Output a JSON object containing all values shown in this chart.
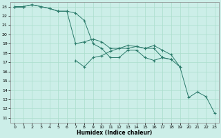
{
  "xlabel": "Humidex (Indice chaleur)",
  "background_color": "#cceee8",
  "grid_color": "#aaddcc",
  "line_color": "#2a7a6a",
  "xlim": [
    -0.5,
    23.5
  ],
  "ylim": [
    10.5,
    23.5
  ],
  "yticks": [
    11,
    12,
    13,
    14,
    15,
    16,
    17,
    18,
    19,
    20,
    21,
    22,
    23
  ],
  "xticks": [
    0,
    1,
    2,
    3,
    4,
    5,
    6,
    7,
    8,
    9,
    10,
    11,
    12,
    13,
    14,
    15,
    16,
    17,
    18,
    19,
    20,
    21,
    22,
    23
  ],
  "line1_x": [
    0,
    1,
    2,
    3,
    4,
    5,
    6,
    7,
    8,
    9,
    10,
    11,
    12,
    13,
    14,
    15,
    16,
    17,
    18,
    19,
    20,
    21,
    22,
    23
  ],
  "line1_y": [
    23,
    23,
    23.2,
    23,
    22.8,
    22.5,
    22.5,
    22.3,
    21.5,
    19,
    18.5,
    17.5,
    17.5,
    18.3,
    18.3,
    17.5,
    17.2,
    17.5,
    17.3,
    16.5,
    null,
    null,
    null,
    null
  ],
  "line2_x": [
    0,
    1,
    2,
    3,
    4,
    5,
    6,
    7,
    8,
    9,
    10,
    11,
    12,
    13,
    14,
    15,
    16,
    17,
    18,
    19,
    20,
    21,
    22,
    23
  ],
  "line2_y": [
    23,
    23,
    null,
    null,
    null,
    null,
    null,
    17.2,
    16.5,
    17.5,
    17.7,
    18.2,
    18.5,
    18.5,
    18.7,
    18.5,
    18.5,
    17.5,
    17.3,
    null,
    null,
    null,
    null,
    null
  ],
  "line3_x": [
    0,
    1,
    2,
    3,
    4,
    5,
    6,
    7,
    8,
    9,
    10,
    11,
    12,
    13,
    14,
    15,
    16,
    17,
    18,
    19,
    20,
    21,
    22,
    23
  ],
  "line3_y": [
    23,
    23,
    23.2,
    23,
    22.8,
    22.5,
    22.5,
    19,
    19.2,
    19.5,
    19.2,
    18.5,
    18.5,
    18.8,
    18.7,
    18.5,
    18.8,
    18.3,
    17.8,
    16.5,
    13.2,
    13.8,
    13.3,
    11.5
  ]
}
